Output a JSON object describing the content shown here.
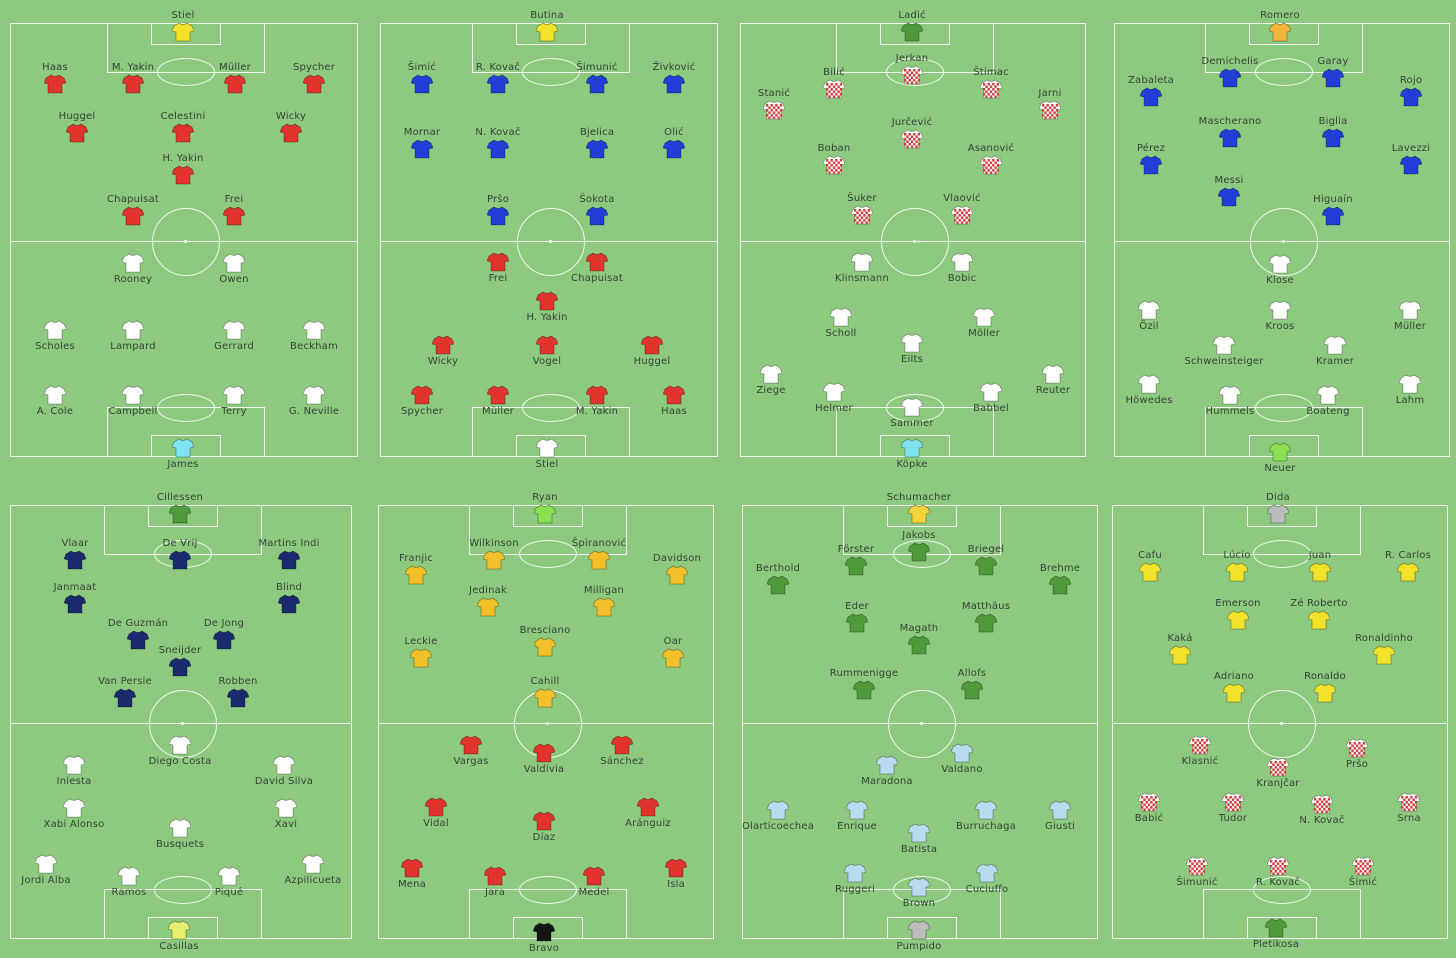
{
  "colors": {
    "red": "#e0342c",
    "white": "#ffffff",
    "yellow": "#f2e22a",
    "cyan": "#7de3ef",
    "blue": "#1f3fd6",
    "redwhite": "#d63a3a",
    "lightblue": "#b8dbef",
    "green": "#4f9a3b",
    "navy": "#1b2a6e",
    "gold": "#f4c02a",
    "black": "#151515",
    "grey": "#bcbcbc",
    "lime": "#86e04f",
    "paleyellow": "#e6f06e",
    "goldenyellow": "#f5d33a",
    "keeperorange": "#f2b43c"
  },
  "pitches": [
    {
      "players": [
        {
          "name": "Stiel",
          "kit": "yellow"
        },
        {
          "name": "Haas",
          "kit": "red"
        },
        {
          "name": "M. Yakin",
          "kit": "red"
        },
        {
          "name": "Müller",
          "kit": "red"
        },
        {
          "name": "Spycher",
          "kit": "red"
        },
        {
          "name": "Huggel",
          "kit": "red"
        },
        {
          "name": "Celestini",
          "kit": "red"
        },
        {
          "name": "Wicky",
          "kit": "red"
        },
        {
          "name": "H. Yakin",
          "kit": "red"
        },
        {
          "name": "Chapuisat",
          "kit": "red"
        },
        {
          "name": "Frei",
          "kit": "red"
        },
        {
          "name": "Rooney",
          "kit": "white"
        },
        {
          "name": "Owen",
          "kit": "white"
        },
        {
          "name": "Scholes",
          "kit": "white"
        },
        {
          "name": "Lampard",
          "kit": "white"
        },
        {
          "name": "Gerrard",
          "kit": "white"
        },
        {
          "name": "Beckham",
          "kit": "white"
        },
        {
          "name": "A. Cole",
          "kit": "white"
        },
        {
          "name": "Campbell",
          "kit": "white"
        },
        {
          "name": "Terry",
          "kit": "white"
        },
        {
          "name": "G. Neville",
          "kit": "white"
        },
        {
          "name": "James",
          "kit": "cyan"
        }
      ]
    },
    {
      "players": [
        {
          "name": "Butina",
          "kit": "yellow"
        },
        {
          "name": "Šimić",
          "kit": "blue"
        },
        {
          "name": "R. Kovač",
          "kit": "blue"
        },
        {
          "name": "Šimunić",
          "kit": "blue"
        },
        {
          "name": "Živković",
          "kit": "blue"
        },
        {
          "name": "Mornar",
          "kit": "blue"
        },
        {
          "name": "N. Kovač",
          "kit": "blue"
        },
        {
          "name": "Bjelica",
          "kit": "blue"
        },
        {
          "name": "Olić",
          "kit": "blue"
        },
        {
          "name": "Pršo",
          "kit": "blue"
        },
        {
          "name": "Šokota",
          "kit": "blue"
        },
        {
          "name": "Frei",
          "kit": "red"
        },
        {
          "name": "Chapuisat",
          "kit": "red"
        },
        {
          "name": "H. Yakin",
          "kit": "red"
        },
        {
          "name": "Wicky",
          "kit": "red"
        },
        {
          "name": "Vogel",
          "kit": "red"
        },
        {
          "name": "Huggel",
          "kit": "red"
        },
        {
          "name": "Spycher",
          "kit": "red"
        },
        {
          "name": "Müller",
          "kit": "red"
        },
        {
          "name": "M. Yakin",
          "kit": "red"
        },
        {
          "name": "Haas",
          "kit": "red"
        },
        {
          "name": "Stiel",
          "kit": "white"
        }
      ]
    },
    {
      "players": [
        {
          "name": "Ladić",
          "kit": "green"
        },
        {
          "name": "Jerkan",
          "kit": "redwhite"
        },
        {
          "name": "Bilić",
          "kit": "redwhite"
        },
        {
          "name": "Štimac",
          "kit": "redwhite"
        },
        {
          "name": "Stanić",
          "kit": "redwhite"
        },
        {
          "name": "Jarni",
          "kit": "redwhite"
        },
        {
          "name": "Jurčević",
          "kit": "redwhite"
        },
        {
          "name": "Boban",
          "kit": "redwhite"
        },
        {
          "name": "Asanović",
          "kit": "redwhite"
        },
        {
          "name": "Šuker",
          "kit": "redwhite"
        },
        {
          "name": "Vlaović",
          "kit": "redwhite"
        },
        {
          "name": "Klinsmann",
          "kit": "white"
        },
        {
          "name": "Bobic",
          "kit": "white"
        },
        {
          "name": "Scholl",
          "kit": "white"
        },
        {
          "name": "Möller",
          "kit": "white"
        },
        {
          "name": "Eilts",
          "kit": "white"
        },
        {
          "name": "Ziege",
          "kit": "white"
        },
        {
          "name": "Reuter",
          "kit": "white"
        },
        {
          "name": "Helmer",
          "kit": "white"
        },
        {
          "name": "Babbel",
          "kit": "white"
        },
        {
          "name": "Sammer",
          "kit": "white"
        },
        {
          "name": "Köpke",
          "kit": "cyan"
        }
      ]
    },
    {
      "players": [
        {
          "name": "Romero",
          "kit": "keeperorange"
        },
        {
          "name": "Demichelis",
          "kit": "blue"
        },
        {
          "name": "Garay",
          "kit": "blue"
        },
        {
          "name": "Zabaleta",
          "kit": "blue"
        },
        {
          "name": "Rojo",
          "kit": "blue"
        },
        {
          "name": "Mascherano",
          "kit": "blue"
        },
        {
          "name": "Biglia",
          "kit": "blue"
        },
        {
          "name": "Pérez",
          "kit": "blue"
        },
        {
          "name": "Lavezzi",
          "kit": "blue"
        },
        {
          "name": "Messi",
          "kit": "blue"
        },
        {
          "name": "Higuaín",
          "kit": "blue"
        },
        {
          "name": "Klose",
          "kit": "white"
        },
        {
          "name": "Özil",
          "kit": "white"
        },
        {
          "name": "Kroos",
          "kit": "white"
        },
        {
          "name": "Müller",
          "kit": "white"
        },
        {
          "name": "Schweinsteiger",
          "kit": "white"
        },
        {
          "name": "Kramer",
          "kit": "white"
        },
        {
          "name": "Höwedes",
          "kit": "white"
        },
        {
          "name": "Lahm",
          "kit": "white"
        },
        {
          "name": "Hummels",
          "kit": "white"
        },
        {
          "name": "Boateng",
          "kit": "white"
        },
        {
          "name": "Neuer",
          "kit": "lime"
        }
      ]
    },
    {
      "players": [
        {
          "name": "Cillessen",
          "kit": "green"
        },
        {
          "name": "Vlaar",
          "kit": "navy"
        },
        {
          "name": "De Vrij",
          "kit": "navy"
        },
        {
          "name": "Martins Indi",
          "kit": "navy"
        },
        {
          "name": "Janmaat",
          "kit": "navy"
        },
        {
          "name": "Blind",
          "kit": "navy"
        },
        {
          "name": "De Guzmán",
          "kit": "navy"
        },
        {
          "name": "De Jong",
          "kit": "navy"
        },
        {
          "name": "Sneijder",
          "kit": "navy"
        },
        {
          "name": "Van Persie",
          "kit": "navy"
        },
        {
          "name": "Robben",
          "kit": "navy"
        },
        {
          "name": "Diego Costa",
          "kit": "white"
        },
        {
          "name": "Iniesta",
          "kit": "white"
        },
        {
          "name": "David Silva",
          "kit": "white"
        },
        {
          "name": "Xabi Alonso",
          "kit": "white"
        },
        {
          "name": "Xavi",
          "kit": "white"
        },
        {
          "name": "Busquets",
          "kit": "white"
        },
        {
          "name": "Jordi Alba",
          "kit": "white"
        },
        {
          "name": "Azpilicueta",
          "kit": "white"
        },
        {
          "name": "Ramos",
          "kit": "white"
        },
        {
          "name": "Piqué",
          "kit": "white"
        },
        {
          "name": "Casillas",
          "kit": "paleyellow"
        }
      ]
    },
    {
      "players": [
        {
          "name": "Ryan",
          "kit": "lime"
        },
        {
          "name": "Wilkinson",
          "kit": "gold"
        },
        {
          "name": "Špiranović",
          "kit": "gold"
        },
        {
          "name": "Franjic",
          "kit": "gold"
        },
        {
          "name": "Davidson",
          "kit": "gold"
        },
        {
          "name": "Jedinak",
          "kit": "gold"
        },
        {
          "name": "Milligan",
          "kit": "gold"
        },
        {
          "name": "Bresciano",
          "kit": "gold"
        },
        {
          "name": "Leckie",
          "kit": "gold"
        },
        {
          "name": "Oar",
          "kit": "gold"
        },
        {
          "name": "Cahill",
          "kit": "gold"
        },
        {
          "name": "Vargas",
          "kit": "red"
        },
        {
          "name": "Valdivia",
          "kit": "red"
        },
        {
          "name": "Sánchez",
          "kit": "red"
        },
        {
          "name": "Vidal",
          "kit": "red"
        },
        {
          "name": "Díaz",
          "kit": "red"
        },
        {
          "name": "Aránguiz",
          "kit": "red"
        },
        {
          "name": "Mena",
          "kit": "red"
        },
        {
          "name": "Isla",
          "kit": "red"
        },
        {
          "name": "Jara",
          "kit": "red"
        },
        {
          "name": "Medel",
          "kit": "red"
        },
        {
          "name": "Bravo",
          "kit": "black"
        }
      ]
    },
    {
      "players": [
        {
          "name": "Schumacher",
          "kit": "goldenyellow"
        },
        {
          "name": "Jakobs",
          "kit": "green"
        },
        {
          "name": "Förster",
          "kit": "green"
        },
        {
          "name": "Briegel",
          "kit": "green"
        },
        {
          "name": "Berthold",
          "kit": "green"
        },
        {
          "name": "Brehme",
          "kit": "green"
        },
        {
          "name": "Eder",
          "kit": "green"
        },
        {
          "name": "Matthäus",
          "kit": "green"
        },
        {
          "name": "Magath",
          "kit": "green"
        },
        {
          "name": "Rummenigge",
          "kit": "green"
        },
        {
          "name": "Allofs",
          "kit": "green"
        },
        {
          "name": "Maradona",
          "kit": "lightblue"
        },
        {
          "name": "Valdano",
          "kit": "lightblue"
        },
        {
          "name": "Olarticoechea",
          "kit": "lightblue"
        },
        {
          "name": "Enrique",
          "kit": "lightblue"
        },
        {
          "name": "Burruchaga",
          "kit": "lightblue"
        },
        {
          "name": "Giusti",
          "kit": "lightblue"
        },
        {
          "name": "Batista",
          "kit": "lightblue"
        },
        {
          "name": "Ruggeri",
          "kit": "lightblue"
        },
        {
          "name": "Cuciuffo",
          "kit": "lightblue"
        },
        {
          "name": "Brown",
          "kit": "lightblue"
        },
        {
          "name": "Pumpido",
          "kit": "grey"
        }
      ]
    },
    {
      "players": [
        {
          "name": "Dida",
          "kit": "grey"
        },
        {
          "name": "Cafu",
          "kit": "yellow"
        },
        {
          "name": "Lúcio",
          "kit": "yellow"
        },
        {
          "name": "Juan",
          "kit": "yellow"
        },
        {
          "name": "R. Carlos",
          "kit": "yellow"
        },
        {
          "name": "Emerson",
          "kit": "yellow"
        },
        {
          "name": "Zé Roberto",
          "kit": "yellow"
        },
        {
          "name": "Kaká",
          "kit": "yellow"
        },
        {
          "name": "Ronaldinho",
          "kit": "yellow"
        },
        {
          "name": "Adriano",
          "kit": "yellow"
        },
        {
          "name": "Ronaldo",
          "kit": "yellow"
        },
        {
          "name": "Klasnić",
          "kit": "redwhite"
        },
        {
          "name": "Kranjčar",
          "kit": "redwhite"
        },
        {
          "name": "Pršo",
          "kit": "redwhite"
        },
        {
          "name": "Babić",
          "kit": "redwhite"
        },
        {
          "name": "Tudor",
          "kit": "redwhite"
        },
        {
          "name": "N. Kovač",
          "kit": "redwhite"
        },
        {
          "name": "Srna",
          "kit": "redwhite"
        },
        {
          "name": "Šimunić",
          "kit": "redwhite"
        },
        {
          "name": "R. Kovač",
          "kit": "redwhite"
        },
        {
          "name": "Šimić",
          "kit": "redwhite"
        },
        {
          "name": "Pletikosa",
          "kit": "green"
        }
      ]
    }
  ]
}
